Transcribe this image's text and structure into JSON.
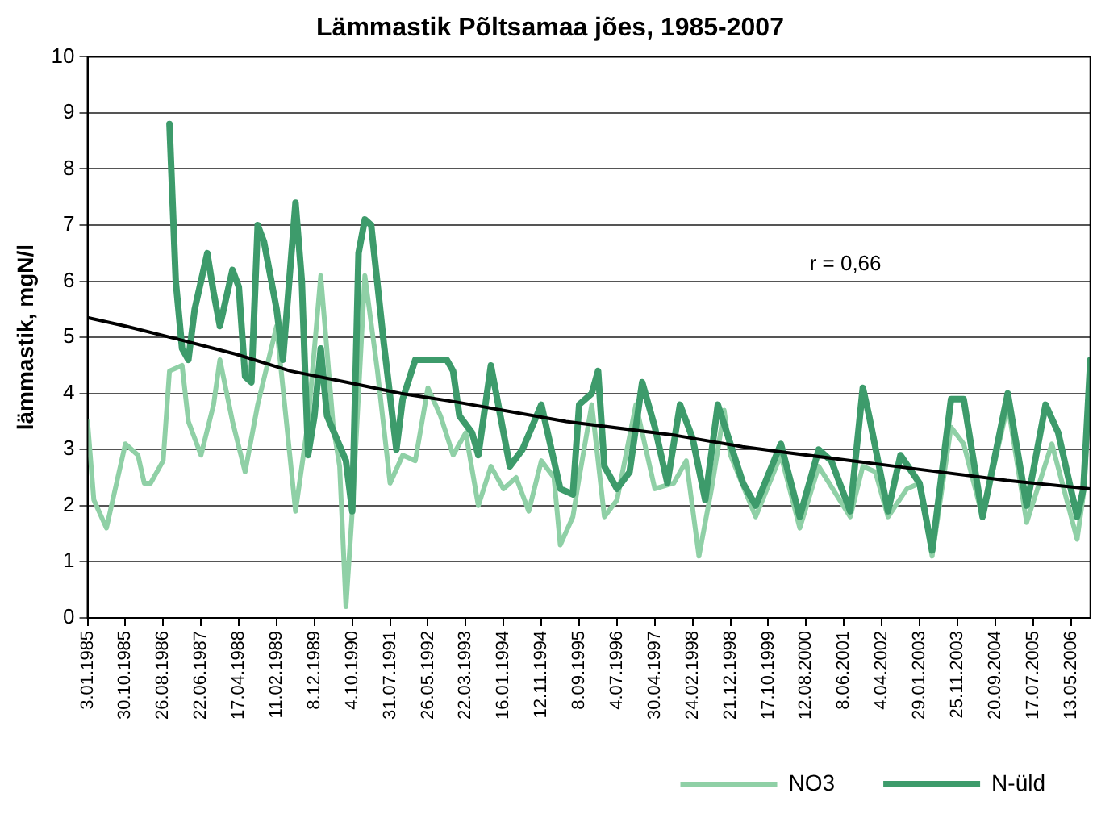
{
  "chart_data": {
    "type": "line",
    "title": "Lämmastik Põltsamaa jões, 1985-2007",
    "ylabel": "lämmastik, mgN/l",
    "xlim": [
      "1985-01-03",
      "2006-10-15"
    ],
    "xticks": [
      {
        "value": "1985-01-03",
        "label": "3.01.1985"
      },
      {
        "value": "1985-10-30",
        "label": "30.10.1985"
      },
      {
        "value": "1986-08-26",
        "label": "26.08.1986"
      },
      {
        "value": "1987-06-22",
        "label": "22.06.1987"
      },
      {
        "value": "1988-04-17",
        "label": "17.04.1988"
      },
      {
        "value": "1989-02-11",
        "label": "11.02.1989"
      },
      {
        "value": "1989-12-08",
        "label": "8.12.1989"
      },
      {
        "value": "1990-10-04",
        "label": "4.10.1990"
      },
      {
        "value": "1991-07-31",
        "label": "31.07.1991"
      },
      {
        "value": "1992-05-26",
        "label": "26.05.1992"
      },
      {
        "value": "1993-03-22",
        "label": "22.03.1993"
      },
      {
        "value": "1994-01-16",
        "label": "16.01.1994"
      },
      {
        "value": "1994-11-12",
        "label": "12.11.1994"
      },
      {
        "value": "1995-09-08",
        "label": "8.09.1995"
      },
      {
        "value": "1996-07-04",
        "label": "4.07.1996"
      },
      {
        "value": "1997-04-30",
        "label": "30.04.1997"
      },
      {
        "value": "1998-02-24",
        "label": "24.02.1998"
      },
      {
        "value": "1998-12-21",
        "label": "21.12.1998"
      },
      {
        "value": "1999-10-17",
        "label": "17.10.1999"
      },
      {
        "value": "2000-08-12",
        "label": "12.08.2000"
      },
      {
        "value": "2001-06-08",
        "label": "8.06.2001"
      },
      {
        "value": "2002-04-04",
        "label": "4.04.2002"
      },
      {
        "value": "2003-01-29",
        "label": "29.01.2003"
      },
      {
        "value": "2003-11-25",
        "label": "25.11.2003"
      },
      {
        "value": "2004-09-20",
        "label": "20.09.2004"
      },
      {
        "value": "2005-07-17",
        "label": "17.07.2005"
      },
      {
        "value": "2006-05-13",
        "label": "13.05.2006"
      }
    ],
    "ylim": [
      0,
      10
    ],
    "yticks": [
      0,
      1,
      2,
      3,
      4,
      5,
      6,
      7,
      8,
      9,
      10
    ],
    "grid": "y",
    "legend": "bottom right",
    "marker": "none",
    "line_style": "solid",
    "annotations": [
      "r = 0,66"
    ],
    "series": [
      {
        "name": "NO3",
        "color": "#8fd0a6",
        "x": [
          "1985-01-03",
          "1985-02-22",
          "1985-06-02",
          "1985-10-30",
          "1986-02-07",
          "1986-03-29",
          "1986-05-18",
          "1986-08-26",
          "1986-10-15",
          "1987-01-23",
          "1987-03-14",
          "1987-06-22",
          "1987-09-30",
          "1987-11-19",
          "1988-02-27",
          "1988-06-06",
          "1988-09-14",
          "1989-02-11",
          "1989-07-11",
          "1989-10-19",
          "1990-01-27",
          "1990-05-07",
          "1990-06-26",
          "1990-08-15",
          "1990-10-04",
          "1991-01-12",
          "1991-04-22",
          "1991-07-31",
          "1991-11-08",
          "1992-02-16",
          "1992-05-26",
          "1992-09-03",
          "1992-12-12",
          "1993-03-22",
          "1993-06-30",
          "1993-10-08",
          "1994-01-16",
          "1994-04-26",
          "1994-08-04",
          "1994-11-12",
          "1995-02-20",
          "1995-04-11",
          "1995-07-20",
          "1995-09-08",
          "1995-12-17",
          "1996-03-26",
          "1996-07-04",
          "1996-12-01",
          "1997-04-30",
          "1997-09-27",
          "1998-01-05",
          "1998-04-15",
          "1998-07-24",
          "1998-11-01",
          "1998-12-21",
          "1999-07-09",
          "2000-01-25",
          "2000-06-23",
          "2000-11-20",
          "2001-07-28",
          "2001-11-05",
          "2002-02-13",
          "2002-05-24",
          "2002-10-21",
          "2003-01-29",
          "2003-05-09",
          "2003-10-06",
          "2004-01-14",
          "2004-06-12",
          "2004-12-29",
          "2005-05-28",
          "2005-12-14",
          "2006-07-02",
          "2006-08-21",
          "2006-10-15"
        ],
        "values": [
          3.5,
          2.1,
          1.6,
          3.1,
          2.9,
          2.4,
          2.4,
          2.8,
          4.4,
          4.5,
          3.5,
          2.9,
          3.8,
          4.6,
          3.5,
          2.6,
          3.8,
          5.2,
          1.9,
          3.5,
          6.1,
          3.4,
          2.7,
          0.2,
          1.9,
          6.1,
          4.4,
          2.4,
          2.9,
          2.8,
          4.1,
          3.6,
          2.9,
          3.3,
          2.0,
          2.7,
          2.3,
          2.5,
          1.9,
          2.8,
          2.5,
          1.3,
          1.8,
          2.5,
          3.8,
          1.8,
          2.1,
          3.8,
          2.3,
          2.4,
          2.8,
          1.1,
          2.3,
          3.7,
          2.9,
          1.8,
          2.9,
          1.6,
          2.7,
          1.8,
          2.7,
          2.6,
          1.8,
          2.3,
          2.4,
          1.1,
          3.4,
          3.1,
          1.8,
          3.8,
          1.7,
          3.1,
          1.4,
          2.2,
          4.2
        ]
      },
      {
        "name": "N-üld",
        "color": "#3d9b6b",
        "x": [
          "1986-10-15",
          "1986-12-04",
          "1987-01-23",
          "1987-03-14",
          "1987-05-03",
          "1987-08-11",
          "1987-09-30",
          "1987-11-19",
          "1988-02-27",
          "1988-04-17",
          "1988-06-06",
          "1988-07-26",
          "1988-09-14",
          "1988-11-03",
          "1989-02-11",
          "1989-04-02",
          "1989-07-11",
          "1989-08-30",
          "1989-10-19",
          "1989-12-08",
          "1990-01-27",
          "1990-03-18",
          "1990-08-15",
          "1990-10-04",
          "1990-11-23",
          "1991-01-12",
          "1991-03-03",
          "1991-06-11",
          "1991-09-19",
          "1991-11-08",
          "1992-02-16",
          "1992-05-26",
          "1992-10-23",
          "1992-12-12",
          "1993-01-31",
          "1993-05-11",
          "1993-06-30",
          "1993-10-08",
          "1994-03-07",
          "1994-06-15",
          "1994-11-12",
          "1995-04-11",
          "1995-07-20",
          "1995-09-08",
          "1995-12-17",
          "1996-02-05",
          "1996-03-26",
          "1996-07-04",
          "1996-10-12",
          "1997-01-20",
          "1997-04-30",
          "1997-08-08",
          "1997-11-16",
          "1998-02-24",
          "1998-06-04",
          "1998-09-12",
          "1998-12-21",
          "1999-03-31",
          "1999-07-09",
          "2000-01-25",
          "2000-06-23",
          "2000-11-20",
          "2001-02-28",
          "2001-07-28",
          "2001-11-05",
          "2001-12-25",
          "2002-05-24",
          "2002-08-31",
          "2003-01-29",
          "2003-05-09",
          "2003-10-06",
          "2004-01-14",
          "2004-06-12",
          "2004-12-29",
          "2005-05-28",
          "2005-10-25",
          "2006-02-02",
          "2006-07-02",
          "2006-08-21",
          "2006-10-15"
        ],
        "values": [
          8.8,
          6.0,
          4.8,
          4.6,
          5.5,
          6.5,
          5.8,
          5.2,
          6.2,
          5.9,
          4.3,
          4.2,
          7.0,
          6.7,
          5.5,
          4.6,
          7.4,
          6.0,
          2.9,
          3.6,
          4.8,
          3.6,
          2.8,
          1.9,
          6.5,
          7.1,
          7.0,
          4.9,
          3.0,
          3.9,
          4.6,
          4.6,
          4.6,
          4.4,
          3.6,
          3.3,
          2.9,
          4.5,
          2.7,
          3.0,
          3.8,
          2.3,
          2.2,
          3.8,
          4.0,
          4.4,
          2.7,
          2.3,
          2.6,
          4.2,
          3.4,
          2.4,
          3.8,
          3.2,
          2.1,
          3.8,
          3.1,
          2.4,
          2.0,
          3.1,
          1.8,
          3.0,
          2.8,
          1.9,
          4.1,
          3.6,
          1.9,
          2.9,
          2.4,
          1.2,
          3.9,
          3.9,
          1.8,
          4.0,
          2.0,
          3.8,
          3.3,
          1.8,
          2.3,
          4.6
        ]
      },
      {
        "color": "#000000",
        "x": [
          "1985-01-03",
          "1985-10-31",
          "1987-01-19",
          "1988-03-25",
          "1989-05-31",
          "1990-08-19",
          "1991-10-25",
          "1992-12-30",
          "1995-05-27",
          "1997-10-18",
          "1999-03-26",
          "2000-02-28",
          "2002-07-26",
          "2004-12-20",
          "2006-10-15"
        ],
        "values": [
          5.35,
          5.2,
          4.95,
          4.7,
          4.4,
          4.2,
          4.0,
          3.85,
          3.5,
          3.25,
          3.05,
          2.95,
          2.7,
          2.45,
          2.3
        ]
      }
    ]
  }
}
